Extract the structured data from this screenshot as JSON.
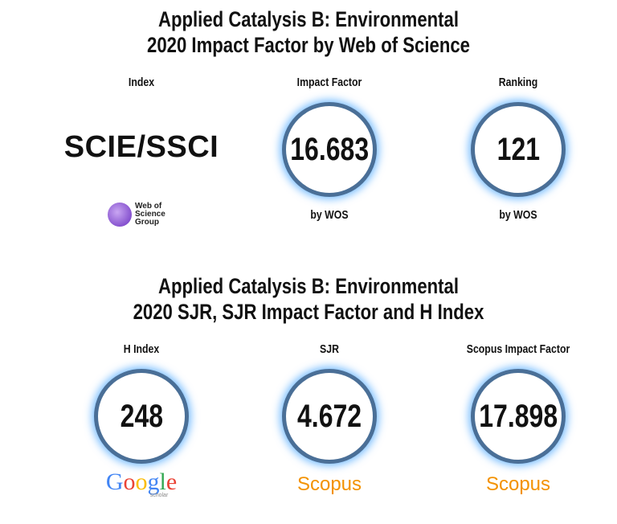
{
  "sections": [
    {
      "title_lines": [
        "Applied Catalysis B: Environmental",
        "2020 Impact Factor by Web of Science"
      ],
      "items": [
        {
          "label": "Index",
          "value": "SCIE/SSCI",
          "logo": [
            "Web of",
            "Science",
            "Group"
          ]
        },
        {
          "label": "Impact Factor",
          "value": 16.683,
          "source": "by WOS"
        },
        {
          "label": "Ranking",
          "value": 121,
          "source": "by WOS"
        }
      ]
    },
    {
      "title_lines": [
        "Applied Catalysis B: Environmental",
        "2020 SJR, SJR Impact Factor and H Index"
      ],
      "items": [
        {
          "label": "H Index",
          "value": 248,
          "logo": [
            "Google",
            "scholar"
          ]
        },
        {
          "label": "SJR",
          "value": 4.672,
          "logo": [
            "Scopus"
          ]
        },
        {
          "label": "Scopus Impact Factor",
          "value": 17.898,
          "logo": [
            "Scopus"
          ]
        }
      ]
    }
  ]
}
